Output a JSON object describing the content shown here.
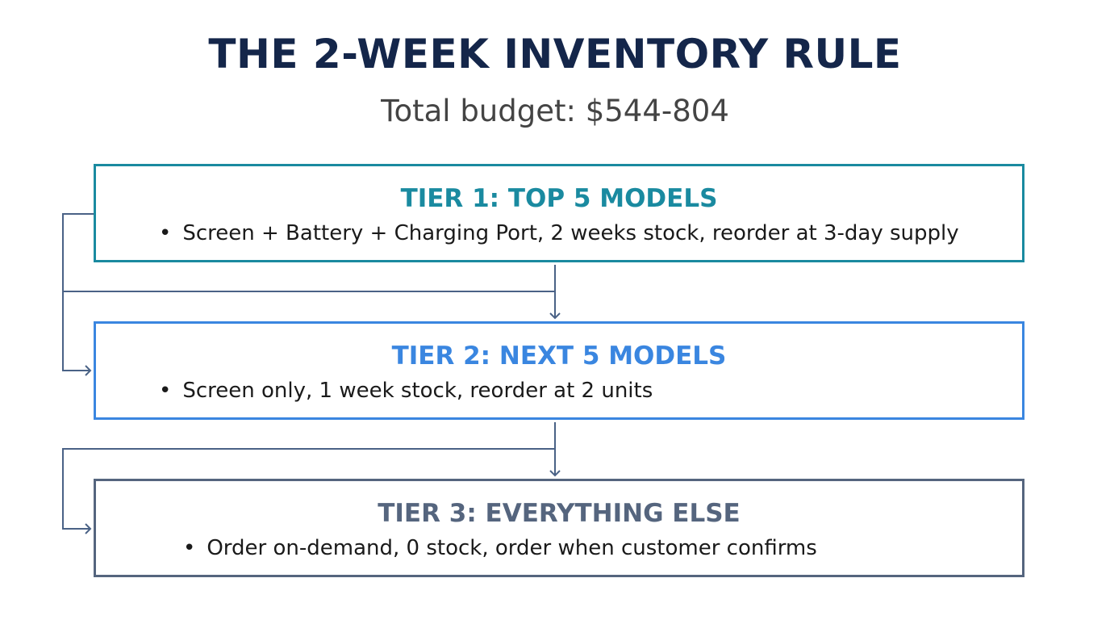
{
  "title": "THE 2-WEEK INVENTORY RULE",
  "subtitle": "Total budget: $544-804",
  "tiers": [
    {
      "title": "TIER 1: TOP 5 MODELS",
      "bullet": "Screen + Battery + Charging Port, 2 weeks stock, reorder at 3-day supply",
      "color": "#1a8aa0"
    },
    {
      "title": "TIER 2: NEXT 5 MODELS",
      "bullet": "Screen only, 1 week stock, reorder at 2 units",
      "color": "#3a86e0"
    },
    {
      "title": "TIER 3: EVERYTHING ELSE",
      "bullet": "Order on-demand, 0 stock, order when customer confirms",
      "color": "#55657e"
    }
  ],
  "connector_color": "#4a6286",
  "title_color": "#14264a"
}
